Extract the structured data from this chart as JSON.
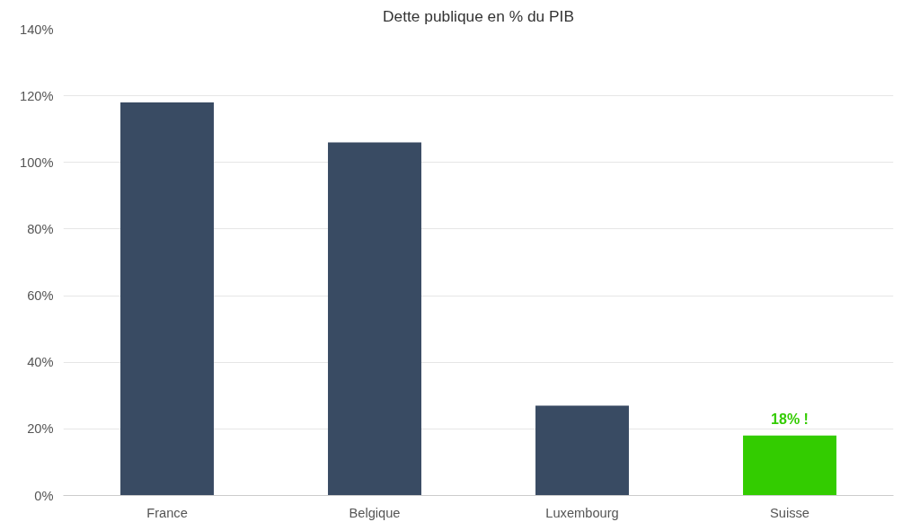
{
  "chart_data": {
    "type": "bar",
    "title": "Dette publique en % du PIB",
    "categories": [
      "France",
      "Belgique",
      "Luxembourg",
      "Suisse"
    ],
    "values": [
      118,
      106,
      27,
      18
    ],
    "colors": [
      "#394b63",
      "#394b63",
      "#394b63",
      "#33cc00"
    ],
    "value_labels": [
      null,
      null,
      null,
      "18% !"
    ],
    "ylim": [
      0,
      140
    ],
    "yticks": [
      {
        "value": 0,
        "label": "0%"
      },
      {
        "value": 20,
        "label": "20%"
      },
      {
        "value": 40,
        "label": "40%"
      },
      {
        "value": 60,
        "label": "60%"
      },
      {
        "value": 80,
        "label": "80%"
      },
      {
        "value": 100,
        "label": "100%"
      },
      {
        "value": 120,
        "label": "120%"
      },
      {
        "value": 140,
        "label": "140%"
      }
    ],
    "grid": "y"
  }
}
